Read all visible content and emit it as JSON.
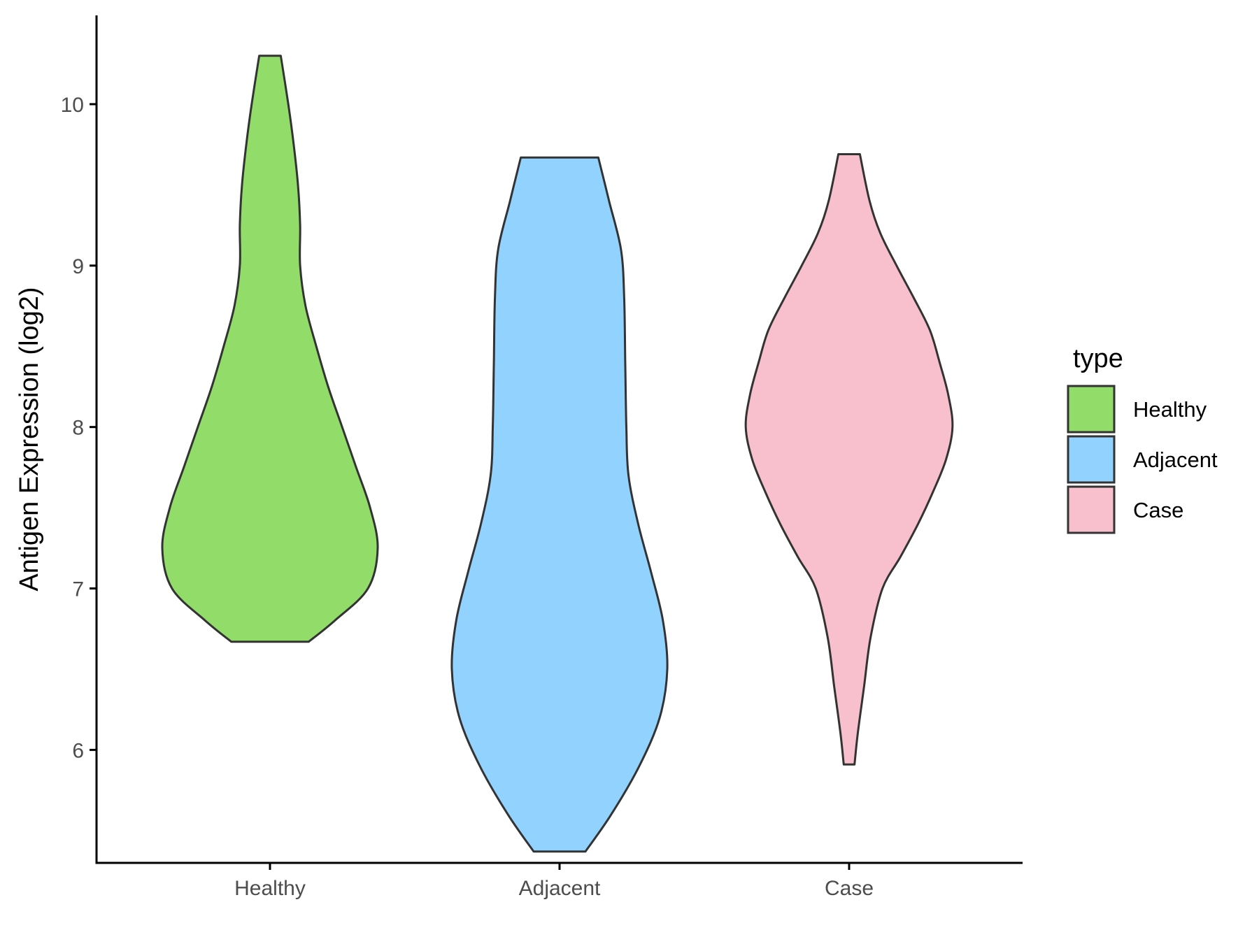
{
  "chart_data": {
    "type": "violin",
    "ylabel": "Antigen Expression (log2)",
    "xlabel": "",
    "ylim": [
      5.3,
      10.55
    ],
    "yticks": [
      6,
      7,
      8,
      9,
      10
    ],
    "categories": [
      "Healthy",
      "Adjacent",
      "Case"
    ],
    "legend": {
      "title": "type",
      "position": "right",
      "entries": [
        "Healthy",
        "Adjacent",
        "Case"
      ]
    },
    "colors": {
      "Healthy": "#92DC6A",
      "Adjacent": "#92D2FF",
      "Case": "#F7C0CC",
      "outline": "#333333"
    },
    "grid": false,
    "series": [
      {
        "name": "Healthy",
        "min": 6.67,
        "max": 10.3,
        "profile": [
          [
            6.67,
            0.36
          ],
          [
            6.8,
            0.6
          ],
          [
            7.0,
            0.91
          ],
          [
            7.25,
            1.0
          ],
          [
            7.5,
            0.93
          ],
          [
            7.75,
            0.8
          ],
          [
            8.0,
            0.67
          ],
          [
            8.25,
            0.54
          ],
          [
            8.5,
            0.43
          ],
          [
            8.75,
            0.33
          ],
          [
            9.0,
            0.28
          ],
          [
            9.25,
            0.28
          ],
          [
            9.5,
            0.26
          ],
          [
            9.75,
            0.22
          ],
          [
            10.0,
            0.17
          ],
          [
            10.3,
            0.1
          ]
        ]
      },
      {
        "name": "Adjacent",
        "min": 5.37,
        "max": 9.67,
        "profile": [
          [
            5.37,
            0.24
          ],
          [
            5.6,
            0.48
          ],
          [
            5.9,
            0.74
          ],
          [
            6.2,
            0.93
          ],
          [
            6.5,
            1.0
          ],
          [
            6.8,
            0.96
          ],
          [
            7.1,
            0.85
          ],
          [
            7.4,
            0.73
          ],
          [
            7.7,
            0.64
          ],
          [
            8.0,
            0.62
          ],
          [
            8.4,
            0.61
          ],
          [
            8.8,
            0.6
          ],
          [
            9.1,
            0.57
          ],
          [
            9.4,
            0.46
          ],
          [
            9.67,
            0.36
          ]
        ]
      },
      {
        "name": "Case",
        "min": 5.91,
        "max": 9.69,
        "profile": [
          [
            5.91,
            0.05
          ],
          [
            6.1,
            0.08
          ],
          [
            6.4,
            0.14
          ],
          [
            6.7,
            0.2
          ],
          [
            7.0,
            0.31
          ],
          [
            7.2,
            0.48
          ],
          [
            7.4,
            0.64
          ],
          [
            7.6,
            0.78
          ],
          [
            7.8,
            0.9
          ],
          [
            8.0,
            0.96
          ],
          [
            8.2,
            0.92
          ],
          [
            8.4,
            0.84
          ],
          [
            8.6,
            0.75
          ],
          [
            8.8,
            0.6
          ],
          [
            9.0,
            0.44
          ],
          [
            9.2,
            0.29
          ],
          [
            9.4,
            0.19
          ],
          [
            9.69,
            0.1
          ]
        ]
      }
    ]
  }
}
